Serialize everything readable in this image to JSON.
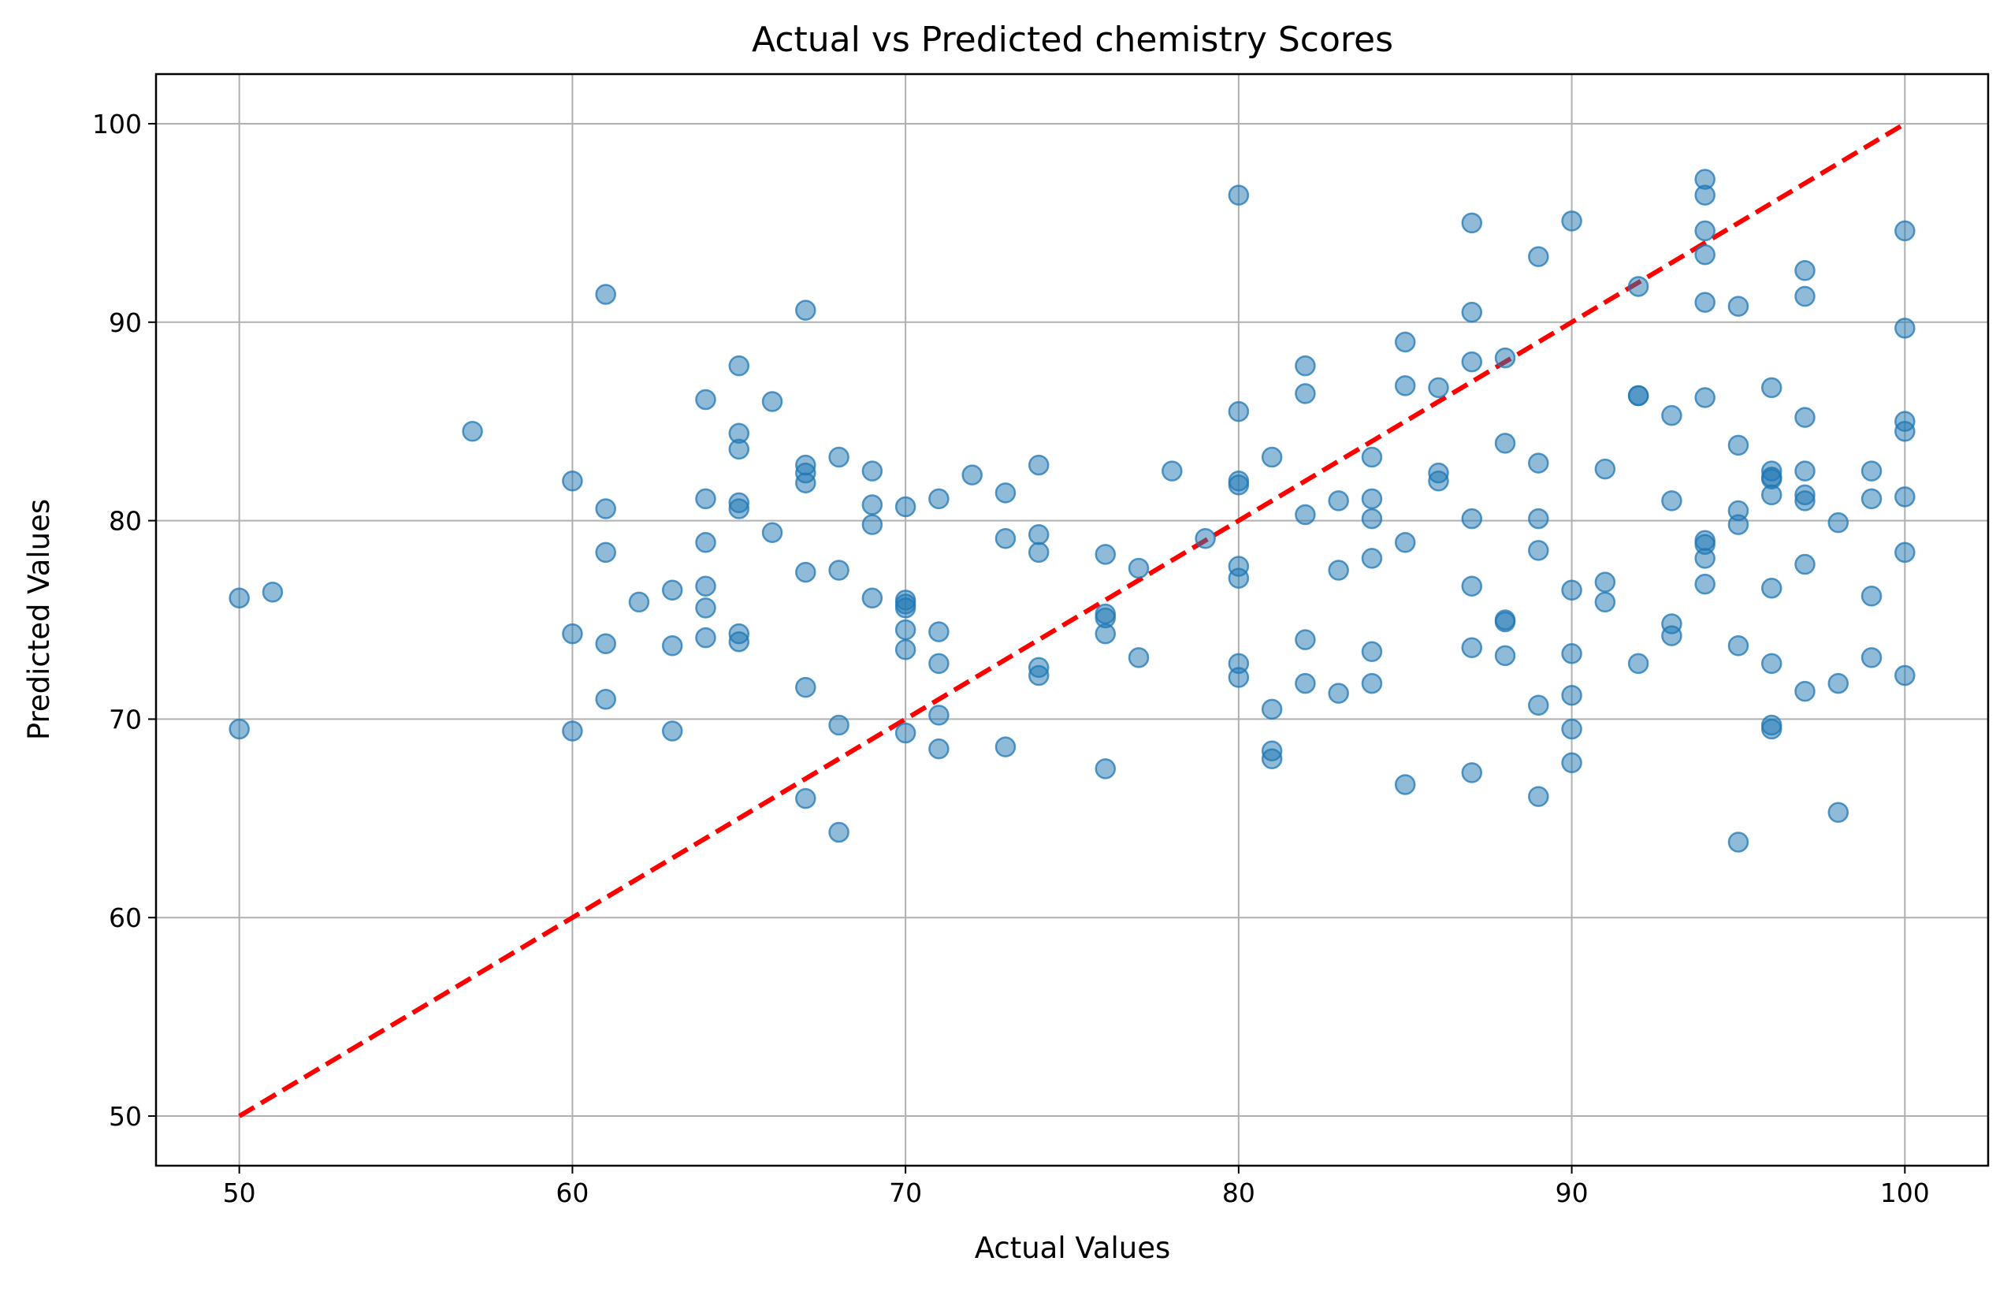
{
  "chart_data": {
    "type": "scatter",
    "title": "Actual vs Predicted chemistry Scores",
    "xlabel": "Actual Values",
    "ylabel": "Predicted Values",
    "xlim": [
      47.5,
      102.5
    ],
    "ylim": [
      47.5,
      102.5
    ],
    "xticks": [
      50,
      60,
      70,
      80,
      90,
      100
    ],
    "yticks": [
      50,
      60,
      70,
      80,
      90,
      100
    ],
    "grid": true,
    "point_color": "#1f77b4",
    "reference_line": {
      "x": [
        50,
        100
      ],
      "y": [
        50,
        100
      ],
      "color": "#ff0000",
      "style": "dashed"
    },
    "points": [
      [
        50,
        76.1
      ],
      [
        50,
        69.5
      ],
      [
        51,
        76.4
      ],
      [
        57,
        84.5
      ],
      [
        60,
        82.0
      ],
      [
        60,
        74.3
      ],
      [
        60,
        69.4
      ],
      [
        61,
        91.4
      ],
      [
        61,
        80.6
      ],
      [
        61,
        78.4
      ],
      [
        61,
        73.8
      ],
      [
        61,
        71.0
      ],
      [
        62,
        75.9
      ],
      [
        63,
        76.5
      ],
      [
        63,
        73.7
      ],
      [
        63,
        69.4
      ],
      [
        64,
        86.1
      ],
      [
        64,
        81.1
      ],
      [
        64,
        78.9
      ],
      [
        64,
        76.7
      ],
      [
        64,
        75.6
      ],
      [
        64,
        74.1
      ],
      [
        65,
        87.8
      ],
      [
        65,
        84.4
      ],
      [
        65,
        83.6
      ],
      [
        65,
        80.9
      ],
      [
        65,
        80.6
      ],
      [
        65,
        74.3
      ],
      [
        65,
        73.9
      ],
      [
        66,
        86.0
      ],
      [
        66,
        79.4
      ],
      [
        67,
        90.6
      ],
      [
        67,
        82.8
      ],
      [
        67,
        82.4
      ],
      [
        67,
        81.9
      ],
      [
        67,
        77.4
      ],
      [
        67,
        71.6
      ],
      [
        67,
        66.0
      ],
      [
        68,
        83.2
      ],
      [
        68,
        77.5
      ],
      [
        68,
        69.7
      ],
      [
        68,
        64.3
      ],
      [
        69,
        82.5
      ],
      [
        69,
        80.8
      ],
      [
        69,
        79.8
      ],
      [
        69,
        76.1
      ],
      [
        70,
        80.7
      ],
      [
        70,
        76.0
      ],
      [
        70,
        75.8
      ],
      [
        70,
        75.6
      ],
      [
        70,
        74.5
      ],
      [
        70,
        73.5
      ],
      [
        70,
        69.3
      ],
      [
        71,
        81.1
      ],
      [
        71,
        74.4
      ],
      [
        71,
        72.8
      ],
      [
        71,
        70.2
      ],
      [
        71,
        68.5
      ],
      [
        72,
        82.3
      ],
      [
        73,
        81.4
      ],
      [
        73,
        79.1
      ],
      [
        73,
        68.6
      ],
      [
        74,
        82.8
      ],
      [
        74,
        79.3
      ],
      [
        74,
        78.4
      ],
      [
        74,
        72.6
      ],
      [
        74,
        72.2
      ],
      [
        76,
        78.3
      ],
      [
        76,
        75.3
      ],
      [
        76,
        75.1
      ],
      [
        76,
        74.3
      ],
      [
        76,
        67.5
      ],
      [
        77,
        77.6
      ],
      [
        77,
        73.1
      ],
      [
        78,
        82.5
      ],
      [
        79,
        79.1
      ],
      [
        80,
        96.4
      ],
      [
        80,
        85.5
      ],
      [
        80,
        82.0
      ],
      [
        80,
        81.8
      ],
      [
        80,
        77.7
      ],
      [
        80,
        77.1
      ],
      [
        80,
        72.8
      ],
      [
        80,
        72.1
      ],
      [
        81,
        83.2
      ],
      [
        81,
        70.5
      ],
      [
        81,
        68.4
      ],
      [
        81,
        68.0
      ],
      [
        82,
        87.8
      ],
      [
        82,
        86.4
      ],
      [
        82,
        80.3
      ],
      [
        82,
        74.0
      ],
      [
        82,
        71.8
      ],
      [
        83,
        81.0
      ],
      [
        83,
        77.5
      ],
      [
        83,
        71.3
      ],
      [
        84,
        83.2
      ],
      [
        84,
        81.1
      ],
      [
        84,
        80.1
      ],
      [
        84,
        78.1
      ],
      [
        84,
        73.4
      ],
      [
        84,
        71.8
      ],
      [
        85,
        89.0
      ],
      [
        85,
        86.8
      ],
      [
        85,
        78.9
      ],
      [
        85,
        66.7
      ],
      [
        86,
        86.7
      ],
      [
        86,
        82.4
      ],
      [
        86,
        82.0
      ],
      [
        87,
        95.0
      ],
      [
        87,
        90.5
      ],
      [
        87,
        88.0
      ],
      [
        87,
        80.1
      ],
      [
        87,
        76.7
      ],
      [
        87,
        73.6
      ],
      [
        87,
        67.3
      ],
      [
        88,
        88.2
      ],
      [
        88,
        83.9
      ],
      [
        88,
        75.0
      ],
      [
        88,
        74.9
      ],
      [
        88,
        73.2
      ],
      [
        89,
        93.3
      ],
      [
        89,
        82.9
      ],
      [
        89,
        80.1
      ],
      [
        89,
        78.5
      ],
      [
        89,
        70.7
      ],
      [
        89,
        66.1
      ],
      [
        90,
        95.1
      ],
      [
        90,
        76.5
      ],
      [
        90,
        73.3
      ],
      [
        90,
        71.2
      ],
      [
        90,
        69.5
      ],
      [
        90,
        67.8
      ],
      [
        91,
        82.6
      ],
      [
        91,
        76.9
      ],
      [
        91,
        75.9
      ],
      [
        92,
        91.8
      ],
      [
        92,
        86.3
      ],
      [
        92,
        86.3
      ],
      [
        92,
        72.8
      ],
      [
        93,
        85.3
      ],
      [
        93,
        81.0
      ],
      [
        93,
        74.8
      ],
      [
        93,
        74.2
      ],
      [
        94,
        97.2
      ],
      [
        94,
        96.4
      ],
      [
        94,
        94.6
      ],
      [
        94,
        93.4
      ],
      [
        94,
        91.0
      ],
      [
        94,
        86.2
      ],
      [
        94,
        79.0
      ],
      [
        94,
        78.8
      ],
      [
        94,
        78.1
      ],
      [
        94,
        76.8
      ],
      [
        95,
        90.8
      ],
      [
        95,
        83.8
      ],
      [
        95,
        80.5
      ],
      [
        95,
        79.8
      ],
      [
        95,
        73.7
      ],
      [
        95,
        63.8
      ],
      [
        96,
        86.7
      ],
      [
        96,
        82.5
      ],
      [
        96,
        82.2
      ],
      [
        96,
        82.1
      ],
      [
        96,
        81.3
      ],
      [
        96,
        76.6
      ],
      [
        96,
        72.8
      ],
      [
        96,
        69.7
      ],
      [
        96,
        69.5
      ],
      [
        97,
        92.6
      ],
      [
        97,
        91.3
      ],
      [
        97,
        85.2
      ],
      [
        97,
        82.5
      ],
      [
        97,
        81.3
      ],
      [
        97,
        81.0
      ],
      [
        97,
        77.8
      ],
      [
        97,
        71.4
      ],
      [
        98,
        79.9
      ],
      [
        98,
        71.8
      ],
      [
        98,
        65.3
      ],
      [
        99,
        82.5
      ],
      [
        99,
        81.1
      ],
      [
        99,
        76.2
      ],
      [
        99,
        73.1
      ],
      [
        100,
        94.6
      ],
      [
        100,
        89.7
      ],
      [
        100,
        85.0
      ],
      [
        100,
        84.5
      ],
      [
        100,
        81.2
      ],
      [
        100,
        78.4
      ],
      [
        100,
        72.2
      ]
    ]
  }
}
